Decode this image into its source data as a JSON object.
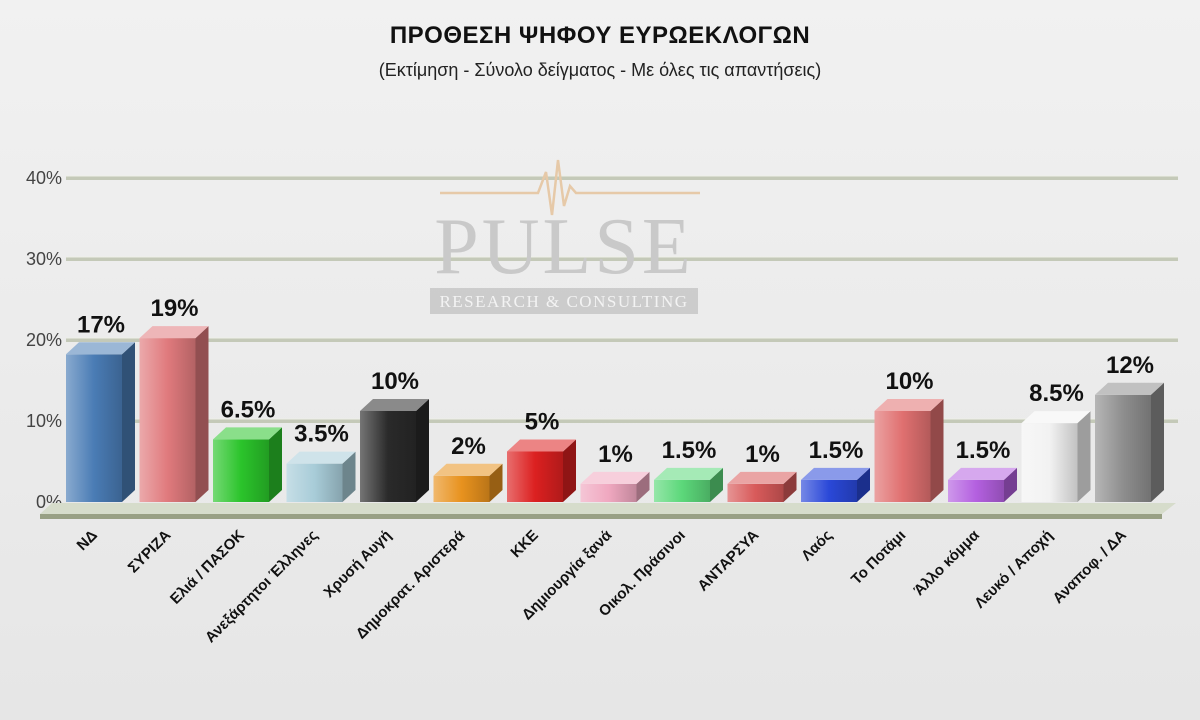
{
  "title": "ΠΡΟΘΕΣΗ ΨΗΦΟΥ ΕΥΡΩΕΚΛΟΓΩΝ",
  "subtitle": "(Εκτίμηση - Σύνολο δείγματος - Με όλες τις απαντήσεις)",
  "watermark": {
    "brand": "PULSE",
    "tagline": "RESEARCH & CONSULTING"
  },
  "chart_data": {
    "type": "bar",
    "title": "ΠΡΟΘΕΣΗ ΨΗΦΟΥ ΕΥΡΩΕΚΛΟΓΩΝ",
    "subtitle": "(Εκτίμηση - Σύνολο δείγματος - Με όλες τις απαντήσεις)",
    "categories": [
      "ΝΔ",
      "ΣΥΡΙΖΑ",
      "Ελιά / ΠΑΣΟΚ",
      "Ανεξάρτητοι Έλληνες",
      "Χρυσή Αυγή",
      "Δημοκρατ. Αριστερά",
      "ΚΚΕ",
      "Δημιουργία ξανά",
      "Οικολ. Πράσινοι",
      "ΑΝΤΑΡΣΥΑ",
      "Λαός",
      "Το Ποτάμι",
      "Άλλο κόμμα",
      "Λευκό / Αποχή",
      "Αναποφ. / ΔΑ"
    ],
    "values": [
      17,
      19,
      6.5,
      3.5,
      10,
      2,
      5,
      1,
      1.5,
      1,
      1.5,
      10,
      1.5,
      8.5,
      12
    ],
    "value_labels": [
      "17%",
      "19%",
      "6.5%",
      "3.5%",
      "10%",
      "2%",
      "5%",
      "1%",
      "1.5%",
      "1%",
      "1.5%",
      "10%",
      "1.5%",
      "8.5%",
      "12%"
    ],
    "colors": [
      "#4a7cb5",
      "#e07a7d",
      "#2bc42b",
      "#a8ccd8",
      "#2a2a2a",
      "#e8921e",
      "#dc2020",
      "#f0a8c0",
      "#5cd87a",
      "#d85a5a",
      "#2a48d8",
      "#e07070",
      "#b460e0",
      "#f2f2f2",
      "#8e8e8e"
    ],
    "yticks": [
      "0%",
      "10%",
      "20%",
      "30%",
      "40%"
    ],
    "ylim": [
      0,
      40
    ],
    "grid": true,
    "legend": "none"
  }
}
